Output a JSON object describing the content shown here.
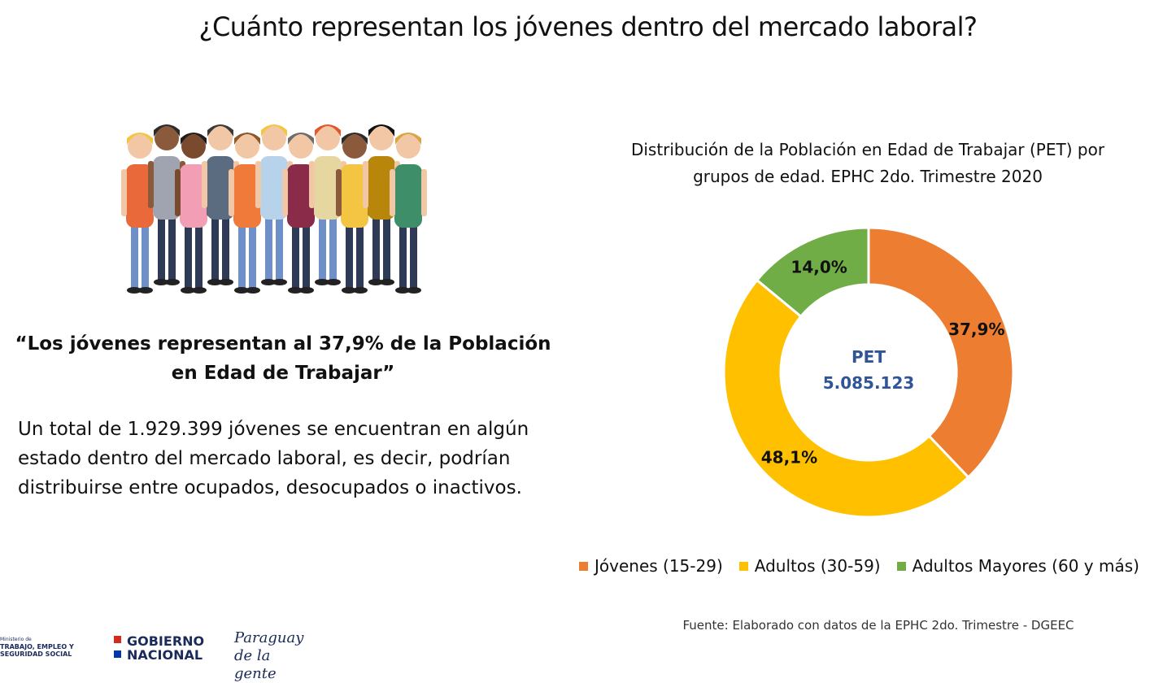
{
  "header": {
    "title": "¿Cuánto representan los jóvenes dentro del mercado laboral?"
  },
  "left": {
    "quote": "“Los jóvenes representan al 37,9% de la Población en Edad de Trabajar”",
    "body": "Un total de 1.929.399 jóvenes se encuentran en algún estado dentro del mercado laboral, es decir, podrían distribuirse entre ocupados, desocupados o inactivos."
  },
  "chart_data": {
    "type": "pie",
    "variant": "donut",
    "title": "Distribución de la Población en Edad de Trabajar (PET) por grupos de edad. EPHC 2do. Trimestre 2020",
    "center_label": "PET",
    "center_value": "5.085.123",
    "categories": [
      "Jóvenes (15-29)",
      "Adultos (30-59)",
      "Adultos Mayores (60 y más)"
    ],
    "values": [
      37.9,
      48.1,
      14.0
    ],
    "labels": [
      "37,9%",
      "48,1%",
      "14,0%"
    ],
    "colors": [
      "#ED7D31",
      "#FFC000",
      "#70AD47"
    ],
    "legend_position": "bottom"
  },
  "footer": {
    "source": "Fuente: Elaborado con datos de la EPHC 2do. Trimestre - DGEEC",
    "logo_ministerio_small": "Ministerio de",
    "logo_ministerio": "TRABAJO, EMPLEO Y SEGURIDAD SOCIAL",
    "logo_gobierno": "GOBIERNO NACIONAL",
    "logo_paraguay": "Paraguay de la gente"
  }
}
